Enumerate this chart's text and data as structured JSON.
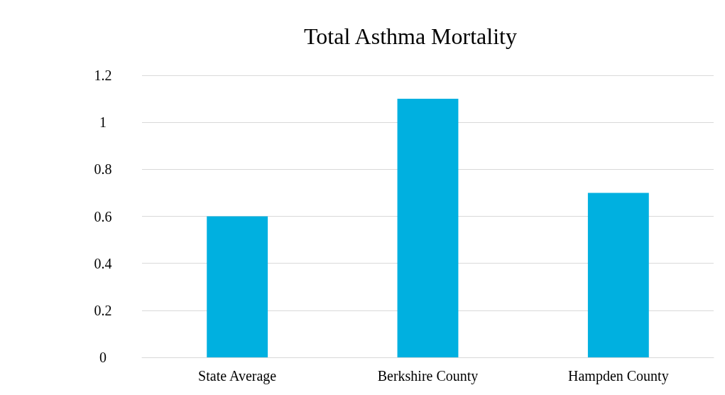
{
  "chart_data": {
    "type": "bar",
    "title": "Total Asthma Mortality",
    "categories": [
      "State Average",
      "Berkshire County",
      "Hampden County"
    ],
    "values": [
      0.6,
      1.1,
      0.7
    ],
    "color": "#00b0e0",
    "ylim": [
      0,
      1.2
    ],
    "yticks": [
      0,
      0.2,
      0.4,
      0.6,
      0.8,
      1,
      1.2
    ],
    "grid": "y"
  }
}
